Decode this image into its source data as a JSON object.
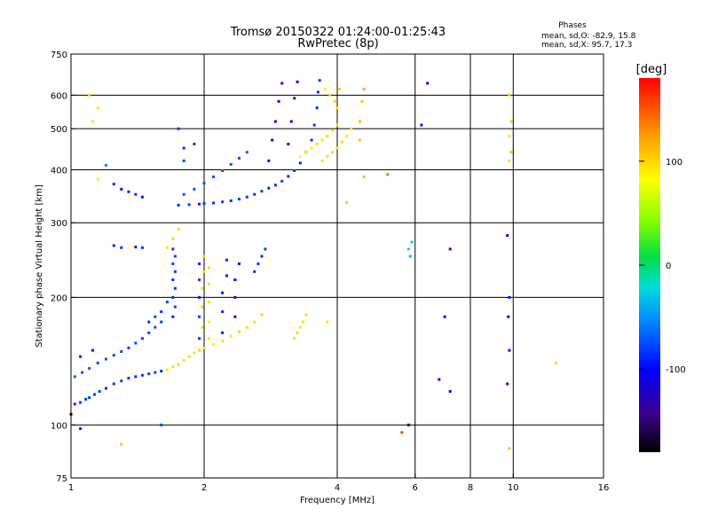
{
  "header": {
    "title_line1": "Tromsø 20150322 01:24:00-01:25:43",
    "title_line2": "RwPretec (8p)",
    "stats_title": "Phases",
    "stats_line1": "mean, sd,O: -82.9, 15.8",
    "stats_line2": "mean, sd,X:  95.7, 17.3"
  },
  "colorbar": {
    "unit": "[deg]",
    "min": -180,
    "max": 180,
    "ticks": [
      {
        "value": 100,
        "label": "100"
      },
      {
        "value": 0,
        "label": "0"
      },
      {
        "value": -100,
        "label": "-100"
      }
    ]
  },
  "chart_data": {
    "type": "scatter",
    "title": "Tromsø 20150322 01:24:00-01:25:43",
    "subtitle": "RwPretec (8p)",
    "xlabel": "Frequency [MHz]",
    "ylabel": "Stationary phase Virtual Height [km]",
    "x_scale": "log",
    "y_scale": "log",
    "xlim": [
      1,
      16
    ],
    "ylim": [
      75,
      750
    ],
    "x_ticks": [
      1,
      2,
      4,
      6,
      8,
      10,
      16
    ],
    "x_tick_labels": [
      "1",
      "2",
      "4",
      "6",
      "8",
      "10",
      "16"
    ],
    "y_ticks": [
      75,
      100,
      200,
      300,
      400,
      500,
      600,
      750
    ],
    "y_tick_labels": [
      "75",
      "100",
      "200",
      "300",
      "400",
      "500",
      "600",
      "750"
    ],
    "grid_x": [
      2,
      4,
      6,
      8,
      10
    ],
    "grid_y": [
      100,
      200,
      300,
      400,
      500,
      600
    ],
    "color_variable": "phase [deg]",
    "color_range": [
      -180,
      180
    ],
    "series": [
      {
        "points": [
          [
            1.02,
            112,
            -85
          ],
          [
            1.05,
            113,
            -80
          ],
          [
            1.08,
            115,
            -82
          ],
          [
            1.1,
            116,
            -78
          ],
          [
            1.13,
            118,
            -84
          ],
          [
            1.16,
            120,
            -80
          ],
          [
            1.2,
            122,
            -86
          ],
          [
            1.25,
            125,
            -82
          ],
          [
            1.3,
            127,
            -79
          ],
          [
            1.35,
            129,
            -83
          ],
          [
            1.4,
            130,
            -88
          ],
          [
            1.45,
            131,
            -84
          ],
          [
            1.5,
            132,
            -80
          ],
          [
            1.55,
            133,
            -83
          ],
          [
            1.6,
            134,
            -87
          ],
          [
            1.02,
            130,
            -70
          ],
          [
            1.06,
            133,
            -74
          ],
          [
            1.1,
            136,
            -72
          ],
          [
            1.15,
            140,
            -76
          ],
          [
            1.2,
            143,
            -73
          ],
          [
            1.25,
            146,
            -78
          ],
          [
            1.3,
            149,
            -75
          ],
          [
            1.35,
            152,
            -79
          ],
          [
            1.4,
            156,
            -74
          ],
          [
            1.45,
            160,
            -77
          ],
          [
            1.5,
            165,
            -80
          ],
          [
            1.55,
            170,
            -76
          ],
          [
            1.6,
            175,
            -82
          ],
          [
            1.05,
            145,
            -90
          ],
          [
            1.12,
            150,
            -95
          ],
          [
            1.65,
            135,
            92
          ],
          [
            1.7,
            137,
            96
          ],
          [
            1.75,
            139,
            100
          ],
          [
            1.8,
            142,
            94
          ],
          [
            1.85,
            145,
            98
          ],
          [
            1.9,
            148,
            92
          ],
          [
            1.95,
            150,
            101
          ],
          [
            2.0,
            152,
            96
          ],
          [
            2.1,
            155,
            90
          ],
          [
            2.2,
            158,
            98
          ],
          [
            2.3,
            162,
            95
          ],
          [
            2.4,
            166,
            100
          ],
          [
            2.5,
            170,
            93
          ],
          [
            2.6,
            175,
            97
          ],
          [
            2.7,
            182,
            102
          ],
          [
            1.7,
            180,
            -88
          ],
          [
            1.7,
            200,
            -84
          ],
          [
            1.7,
            220,
            -86
          ],
          [
            1.7,
            240,
            -80
          ],
          [
            1.7,
            260,
            -82
          ],
          [
            1.72,
            190,
            -78
          ],
          [
            1.72,
            210,
            -83
          ],
          [
            1.72,
            230,
            -85
          ],
          [
            1.72,
            250,
            -79
          ],
          [
            1.95,
            160,
            -85
          ],
          [
            1.95,
            180,
            -80
          ],
          [
            1.95,
            200,
            -88
          ],
          [
            1.95,
            220,
            -82
          ],
          [
            1.95,
            240,
            -86
          ],
          [
            1.98,
            170,
            95
          ],
          [
            1.98,
            190,
            98
          ],
          [
            1.98,
            210,
            92
          ],
          [
            2.0,
            230,
            96
          ],
          [
            2.0,
            250,
            100
          ],
          [
            2.05,
            160,
            94
          ],
          [
            2.05,
            175,
            90
          ],
          [
            2.05,
            195,
            97
          ],
          [
            2.05,
            215,
            93
          ],
          [
            2.05,
            235,
            99
          ],
          [
            2.2,
            165,
            -95
          ],
          [
            2.2,
            185,
            -90
          ],
          [
            2.2,
            205,
            -98
          ],
          [
            2.25,
            225,
            -92
          ],
          [
            2.25,
            245,
            -86
          ],
          [
            2.35,
            180,
            -100
          ],
          [
            2.35,
            200,
            -95
          ],
          [
            2.35,
            220,
            -102
          ],
          [
            2.4,
            240,
            -96
          ],
          [
            1.5,
            175,
            -84
          ],
          [
            1.55,
            180,
            -80
          ],
          [
            1.6,
            185,
            -86
          ],
          [
            1.65,
            195,
            -79
          ],
          [
            1.75,
            330,
            -85
          ],
          [
            1.85,
            331,
            -80
          ],
          [
            1.95,
            332,
            -88
          ],
          [
            2.0,
            333,
            -82
          ],
          [
            2.1,
            334,
            -86
          ],
          [
            2.2,
            336,
            -80
          ],
          [
            2.3,
            338,
            -84
          ],
          [
            2.4,
            341,
            -79
          ],
          [
            2.5,
            345,
            -83
          ],
          [
            2.6,
            350,
            -86
          ],
          [
            2.7,
            356,
            -81
          ],
          [
            2.8,
            362,
            -88
          ],
          [
            2.9,
            368,
            -84
          ],
          [
            3.0,
            376,
            -80
          ],
          [
            3.1,
            386,
            -86
          ],
          [
            3.2,
            398,
            -82
          ],
          [
            3.3,
            415,
            -88
          ],
          [
            3.4,
            440,
            -84
          ],
          [
            3.5,
            470,
            -86
          ],
          [
            3.55,
            510,
            -82
          ],
          [
            3.6,
            560,
            -88
          ],
          [
            3.62,
            610,
            -84
          ],
          [
            3.65,
            650,
            -86
          ],
          [
            1.8,
            350,
            -70
          ],
          [
            1.9,
            360,
            -72
          ],
          [
            2.0,
            372,
            -68
          ],
          [
            2.1,
            385,
            -74
          ],
          [
            2.2,
            398,
            -70
          ],
          [
            2.3,
            412,
            -72
          ],
          [
            2.4,
            426,
            -76
          ],
          [
            2.5,
            440,
            -70
          ],
          [
            1.8,
            420,
            -78
          ],
          [
            1.9,
            460,
            -82
          ],
          [
            1.75,
            500,
            -86
          ],
          [
            1.8,
            450,
            -84
          ],
          [
            2.8,
            420,
            -95
          ],
          [
            2.85,
            470,
            -100
          ],
          [
            2.9,
            520,
            -96
          ],
          [
            2.95,
            580,
            -98
          ],
          [
            3.0,
            640,
            -94
          ],
          [
            3.1,
            460,
            -102
          ],
          [
            3.15,
            520,
            -98
          ],
          [
            3.2,
            590,
            -96
          ],
          [
            3.25,
            645,
            -100
          ],
          [
            3.3,
            430,
            85
          ],
          [
            3.4,
            440,
            90
          ],
          [
            3.5,
            450,
            88
          ],
          [
            3.6,
            460,
            95
          ],
          [
            3.7,
            470,
            92
          ],
          [
            3.8,
            480,
            98
          ],
          [
            3.9,
            495,
            90
          ],
          [
            4.0,
            510,
            96
          ],
          [
            4.0,
            560,
            100
          ],
          [
            4.05,
            620,
            104
          ],
          [
            3.7,
            420,
            92
          ],
          [
            3.8,
            430,
            96
          ],
          [
            3.9,
            440,
            100
          ],
          [
            4.0,
            450,
            94
          ],
          [
            4.1,
            465,
            98
          ],
          [
            4.2,
            480,
            92
          ],
          [
            4.3,
            500,
            96
          ],
          [
            3.75,
            620,
            90
          ],
          [
            3.85,
            600,
            100
          ],
          [
            3.95,
            580,
            105
          ],
          [
            4.5,
            470,
            108
          ],
          [
            4.5,
            520,
            112
          ],
          [
            4.55,
            580,
            110
          ],
          [
            4.6,
            620,
            115
          ],
          [
            1.35,
            355,
            -90
          ],
          [
            1.4,
            350,
            -86
          ],
          [
            1.45,
            345,
            -92
          ],
          [
            1.3,
            360,
            -94
          ],
          [
            1.25,
            370,
            -88
          ],
          [
            1.15,
            380,
            90
          ],
          [
            1.12,
            520,
            95
          ],
          [
            1.1,
            600,
            100
          ],
          [
            1.15,
            560,
            92
          ],
          [
            1.2,
            410,
            -60
          ],
          [
            1.25,
            265,
            -88
          ],
          [
            1.3,
            262,
            -84
          ],
          [
            1.4,
            263,
            -90
          ],
          [
            1.45,
            262,
            -86
          ],
          [
            1.65,
            262,
            96
          ],
          [
            1.7,
            275,
            100
          ],
          [
            1.75,
            290,
            94
          ],
          [
            3.2,
            160,
            95
          ],
          [
            3.25,
            165,
            100
          ],
          [
            3.3,
            170,
            92
          ],
          [
            3.35,
            175,
            96
          ],
          [
            3.4,
            182,
            98
          ],
          [
            2.6,
            230,
            -86
          ],
          [
            2.65,
            240,
            -82
          ],
          [
            2.7,
            250,
            -88
          ],
          [
            2.75,
            260,
            -80
          ],
          [
            5.8,
            260,
            -20
          ],
          [
            5.9,
            270,
            -25
          ],
          [
            5.85,
            250,
            -30
          ],
          [
            7.2,
            260,
            -95
          ],
          [
            7.0,
            180,
            -100
          ],
          [
            6.8,
            128,
            -98
          ],
          [
            7.2,
            120,
            -110
          ],
          [
            9.8,
            600,
            100
          ],
          [
            9.9,
            520,
            105
          ],
          [
            9.8,
            480,
            98
          ],
          [
            9.9,
            440,
            110
          ],
          [
            9.8,
            420,
            95
          ],
          [
            9.7,
            280,
            -96
          ],
          [
            9.8,
            200,
            -90
          ],
          [
            9.75,
            180,
            -100
          ],
          [
            9.8,
            150,
            -98
          ],
          [
            9.7,
            125,
            -104
          ],
          [
            9.8,
            88,
            110
          ],
          [
            6.4,
            640,
            -105
          ],
          [
            6.2,
            510,
            -94
          ],
          [
            5.8,
            100,
            -150
          ],
          [
            5.6,
            96,
            155
          ],
          [
            12.5,
            140,
            100
          ],
          [
            5.2,
            390,
            140
          ],
          [
            4.6,
            385,
            110
          ],
          [
            4.2,
            335,
            104
          ],
          [
            3.8,
            175,
            95
          ],
          [
            1.6,
            100,
            -80
          ],
          [
            1.3,
            90,
            110
          ],
          [
            1.0,
            106,
            -170
          ],
          [
            1.05,
            98,
            -88
          ]
        ]
      }
    ]
  }
}
